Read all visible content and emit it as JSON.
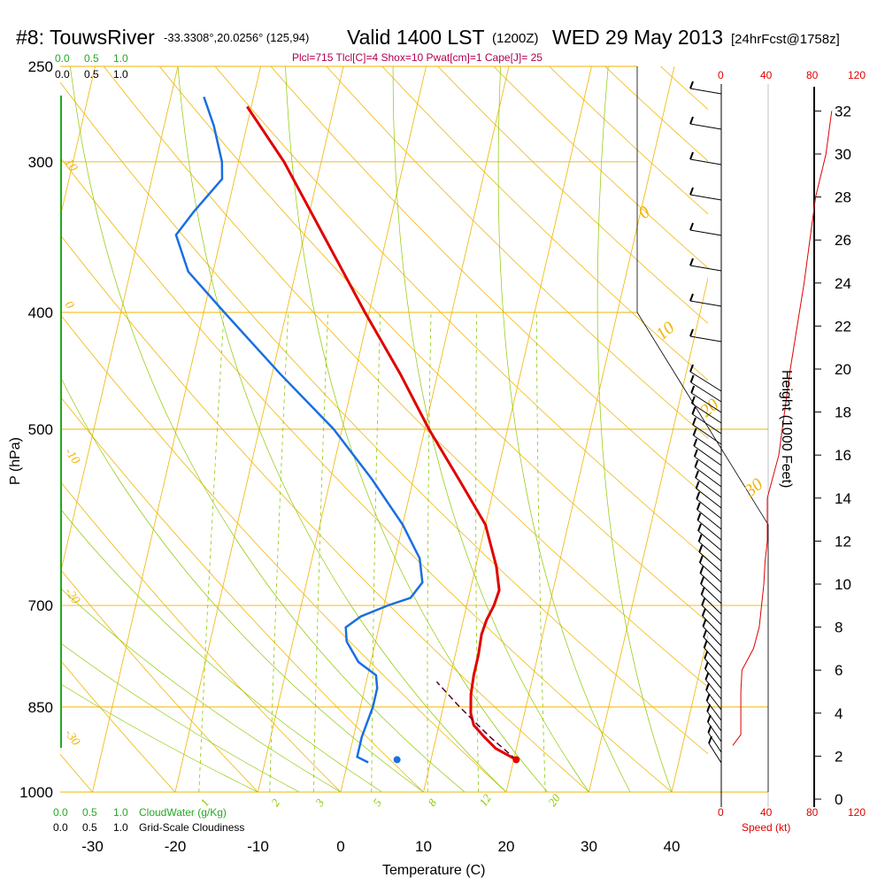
{
  "header": {
    "station": "#8: TouwsRiver",
    "coords": "-33.3308°,20.0256° (125,94)",
    "valid": "Valid 1400 LST",
    "utc": "(1200Z)",
    "date": "WED 29 May 2013",
    "fcst": "[24hrFcst@1758z]",
    "indices": "Plcl=715 Tlcl[C]=4 Shox=10 Pwat[cm]=1 Cape[J]= 25"
  },
  "scales": {
    "cloudwater_ticks": [
      "0.0",
      "0.5",
      "1.0"
    ],
    "cloudiness_ticks": [
      "0.0",
      "0.5",
      "1.0"
    ],
    "cloudwater_label": "CloudWater (g/Kg)",
    "cloudiness_label": "Grid-Scale Cloudiness",
    "speed_ticks": [
      "0",
      "40",
      "80",
      "120"
    ],
    "speed_label": "Speed (kt)"
  },
  "labels": {
    "ylabel": "P (hPa)",
    "xlabel": "Temperature (C)",
    "height_label": "Height (1000 Feet)"
  },
  "colors": {
    "temperature": "#e00000",
    "dewpoint": "#1a6fe0",
    "isotherm_dryadiabat": "#f0b400",
    "mixing_ratio": "#8cc800",
    "moist_adiabat": "#8cc800",
    "parcel": "#5a0030",
    "header_indices": "#b00050",
    "speed": "#e00000"
  },
  "chart_data": {
    "type": "line",
    "subtype": "skew-T log-P sounding",
    "x_ticks": [
      -30,
      -20,
      -10,
      0,
      10,
      20,
      30,
      40
    ],
    "x_tick_labels": [
      "-30",
      "-20",
      "-10",
      "0",
      "10",
      "20",
      "30",
      "40"
    ],
    "pressure_ticks": [
      250,
      300,
      400,
      500,
      700,
      850,
      1000
    ],
    "pressure_tick_labels": [
      "250",
      "300",
      "400",
      "500",
      "700",
      "850",
      "1000"
    ],
    "height_ticks": [
      0,
      2,
      4,
      6,
      8,
      10,
      12,
      14,
      16,
      18,
      20,
      22,
      24,
      26,
      28,
      30,
      32
    ],
    "height_tick_labels": [
      "0",
      "2",
      "4",
      "6",
      "8",
      "10",
      "12",
      "14",
      "16",
      "18",
      "20",
      "22",
      "24",
      "26",
      "28",
      "30",
      "32"
    ],
    "mixing_ratio_labels": [
      "1",
      "2",
      "3",
      "5",
      "8",
      "12",
      "20"
    ],
    "dry_adiabat_labels": [
      "10",
      "0",
      "-10",
      "-20",
      "-30"
    ],
    "moist_adiabat_labels": [
      "0",
      "10",
      "20",
      "30"
    ],
    "series": [
      {
        "name": "temperature",
        "points": [
          {
            "p": 940,
            "t": 20.3
          },
          {
            "p": 920,
            "t": 17.5
          },
          {
            "p": 900,
            "t": 15.8
          },
          {
            "p": 880,
            "t": 14.2
          },
          {
            "p": 860,
            "t": 13.5
          },
          {
            "p": 830,
            "t": 13.0
          },
          {
            "p": 800,
            "t": 12.8
          },
          {
            "p": 770,
            "t": 12.8
          },
          {
            "p": 740,
            "t": 12.6
          },
          {
            "p": 720,
            "t": 12.8
          },
          {
            "p": 700,
            "t": 13.3
          },
          {
            "p": 680,
            "t": 13.5
          },
          {
            "p": 650,
            "t": 12.5
          },
          {
            "p": 600,
            "t": 10.0
          },
          {
            "p": 550,
            "t": 5.5
          },
          {
            "p": 500,
            "t": 0.5
          },
          {
            "p": 450,
            "t": -4.5
          },
          {
            "p": 400,
            "t": -10.5
          },
          {
            "p": 350,
            "t": -17.0
          },
          {
            "p": 300,
            "t": -24.5
          },
          {
            "p": 270,
            "t": -30.5
          }
        ]
      },
      {
        "name": "dewpoint",
        "points": [
          {
            "p": 945,
            "t": 2.5
          },
          {
            "p": 935,
            "t": 1.0
          },
          {
            "p": 900,
            "t": 1.0
          },
          {
            "p": 850,
            "t": 1.5
          },
          {
            "p": 820,
            "t": 1.5
          },
          {
            "p": 800,
            "t": 1.0
          },
          {
            "p": 780,
            "t": -1.5
          },
          {
            "p": 750,
            "t": -3.5
          },
          {
            "p": 730,
            "t": -4.0
          },
          {
            "p": 715,
            "t": -2.5
          },
          {
            "p": 700,
            "t": 0.5
          },
          {
            "p": 690,
            "t": 3.0
          },
          {
            "p": 670,
            "t": 4.0
          },
          {
            "p": 640,
            "t": 3.0
          },
          {
            "p": 600,
            "t": 0.0
          },
          {
            "p": 550,
            "t": -5.0
          },
          {
            "p": 500,
            "t": -11.0
          },
          {
            "p": 450,
            "t": -19.0
          },
          {
            "p": 400,
            "t": -27.5
          },
          {
            "p": 370,
            "t": -33.0
          },
          {
            "p": 345,
            "t": -35.5
          },
          {
            "p": 330,
            "t": -34.0
          },
          {
            "p": 310,
            "t": -31.5
          },
          {
            "p": 300,
            "t": -32.0
          },
          {
            "p": 280,
            "t": -34.0
          },
          {
            "p": 265,
            "t": -36.0
          }
        ]
      },
      {
        "name": "parcel",
        "points": [
          {
            "p": 940,
            "t": 20.3
          },
          {
            "p": 900,
            "t": 16.5
          },
          {
            "p": 850,
            "t": 12.0
          },
          {
            "p": 810,
            "t": 8.5
          }
        ]
      }
    ],
    "surface_dewpoint_marker": {
      "p": 940,
      "t": 5.9
    },
    "surface_temperature_marker": {
      "p": 940,
      "t": 20.3
    },
    "wind_speed_profile": [
      {
        "h": 2.5,
        "speed": 10
      },
      {
        "h": 3,
        "speed": 17
      },
      {
        "h": 5,
        "speed": 17
      },
      {
        "h": 6,
        "speed": 18
      },
      {
        "h": 7,
        "speed": 28
      },
      {
        "h": 8,
        "speed": 33
      },
      {
        "h": 10,
        "speed": 37
      },
      {
        "h": 11,
        "speed": 38
      },
      {
        "h": 12,
        "speed": 40
      },
      {
        "h": 14,
        "speed": 40
      },
      {
        "h": 16,
        "speed": 50
      },
      {
        "h": 20,
        "speed": 60
      },
      {
        "h": 24,
        "speed": 72
      },
      {
        "h": 28,
        "speed": 82
      },
      {
        "h": 30,
        "speed": 91
      },
      {
        "h": 32,
        "speed": 96
      }
    ]
  }
}
